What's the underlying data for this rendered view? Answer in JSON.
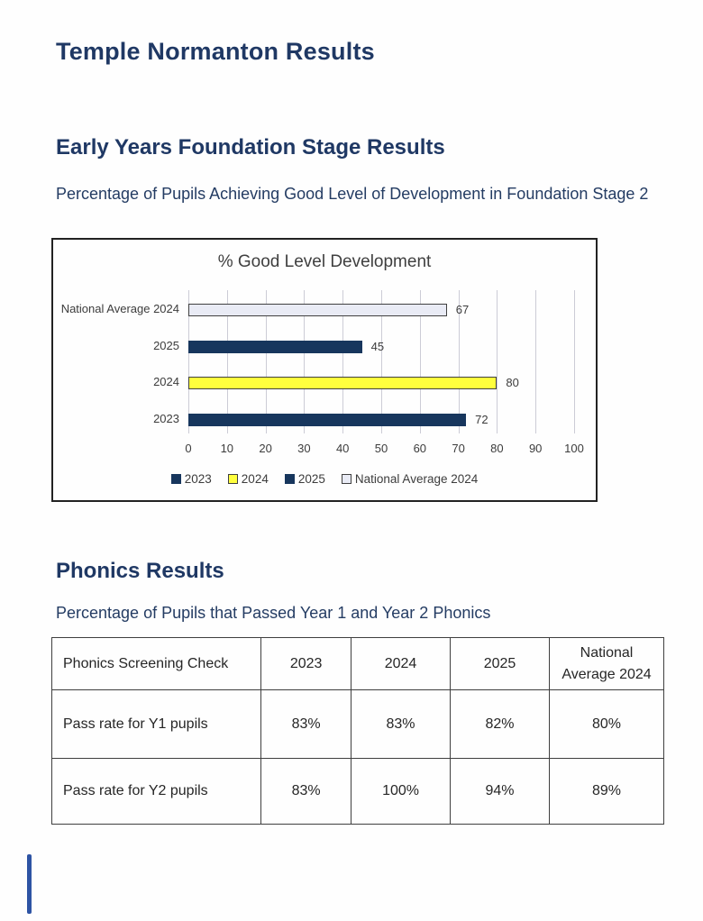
{
  "page": {
    "title": "Temple Normanton Results"
  },
  "eyfs": {
    "heading": "Early Years Foundation Stage Results",
    "subtitle": "Percentage of Pupils Achieving Good Level of Development in Foundation Stage 2"
  },
  "chart_data": {
    "type": "bar",
    "orientation": "horizontal",
    "title": "% Good Level Development",
    "categories": [
      "National Average 2024",
      "2025",
      "2024",
      "2023"
    ],
    "values": [
      67,
      45,
      80,
      72
    ],
    "bar_colors": [
      "#e9ebf5",
      "#17365d",
      "#ffff3d",
      "#17365d"
    ],
    "bar_borders": [
      "#404040",
      "none",
      "#404040",
      "none"
    ],
    "xlim": [
      0,
      100
    ],
    "xticks": [
      0,
      10,
      20,
      30,
      40,
      50,
      60,
      70,
      80,
      90,
      100
    ],
    "grid": true,
    "legend_position": "bottom",
    "legend": [
      {
        "label": "2023",
        "color": "#17365d",
        "border": "#17365d"
      },
      {
        "label": "2024",
        "color": "#ffff3d",
        "border": "#404040"
      },
      {
        "label": "2025",
        "color": "#17365d",
        "border": "#17365d"
      },
      {
        "label": "National Average 2024",
        "color": "#e9ebf5",
        "border": "#404040"
      }
    ]
  },
  "phonics": {
    "heading": "Phonics Results",
    "subtitle": "Percentage of Pupils that Passed Year 1 and Year 2 Phonics",
    "table": {
      "headers": [
        "Phonics Screening Check",
        "2023",
        "2024",
        "2025",
        "National Average 2024"
      ],
      "rows": [
        {
          "label": "Pass rate for Y1 pupils",
          "values": [
            "83%",
            "83%",
            "82%",
            "80%"
          ]
        },
        {
          "label": "Pass rate for Y2 pupils",
          "values": [
            "83%",
            "100%",
            "94%",
            "89%"
          ]
        }
      ]
    }
  },
  "colors": {
    "heading_navy": "#1f3864",
    "chart_text": "#3c3c3c",
    "table_border": "#3f3f3f",
    "scan_mark_blue": "#2e54a4"
  }
}
